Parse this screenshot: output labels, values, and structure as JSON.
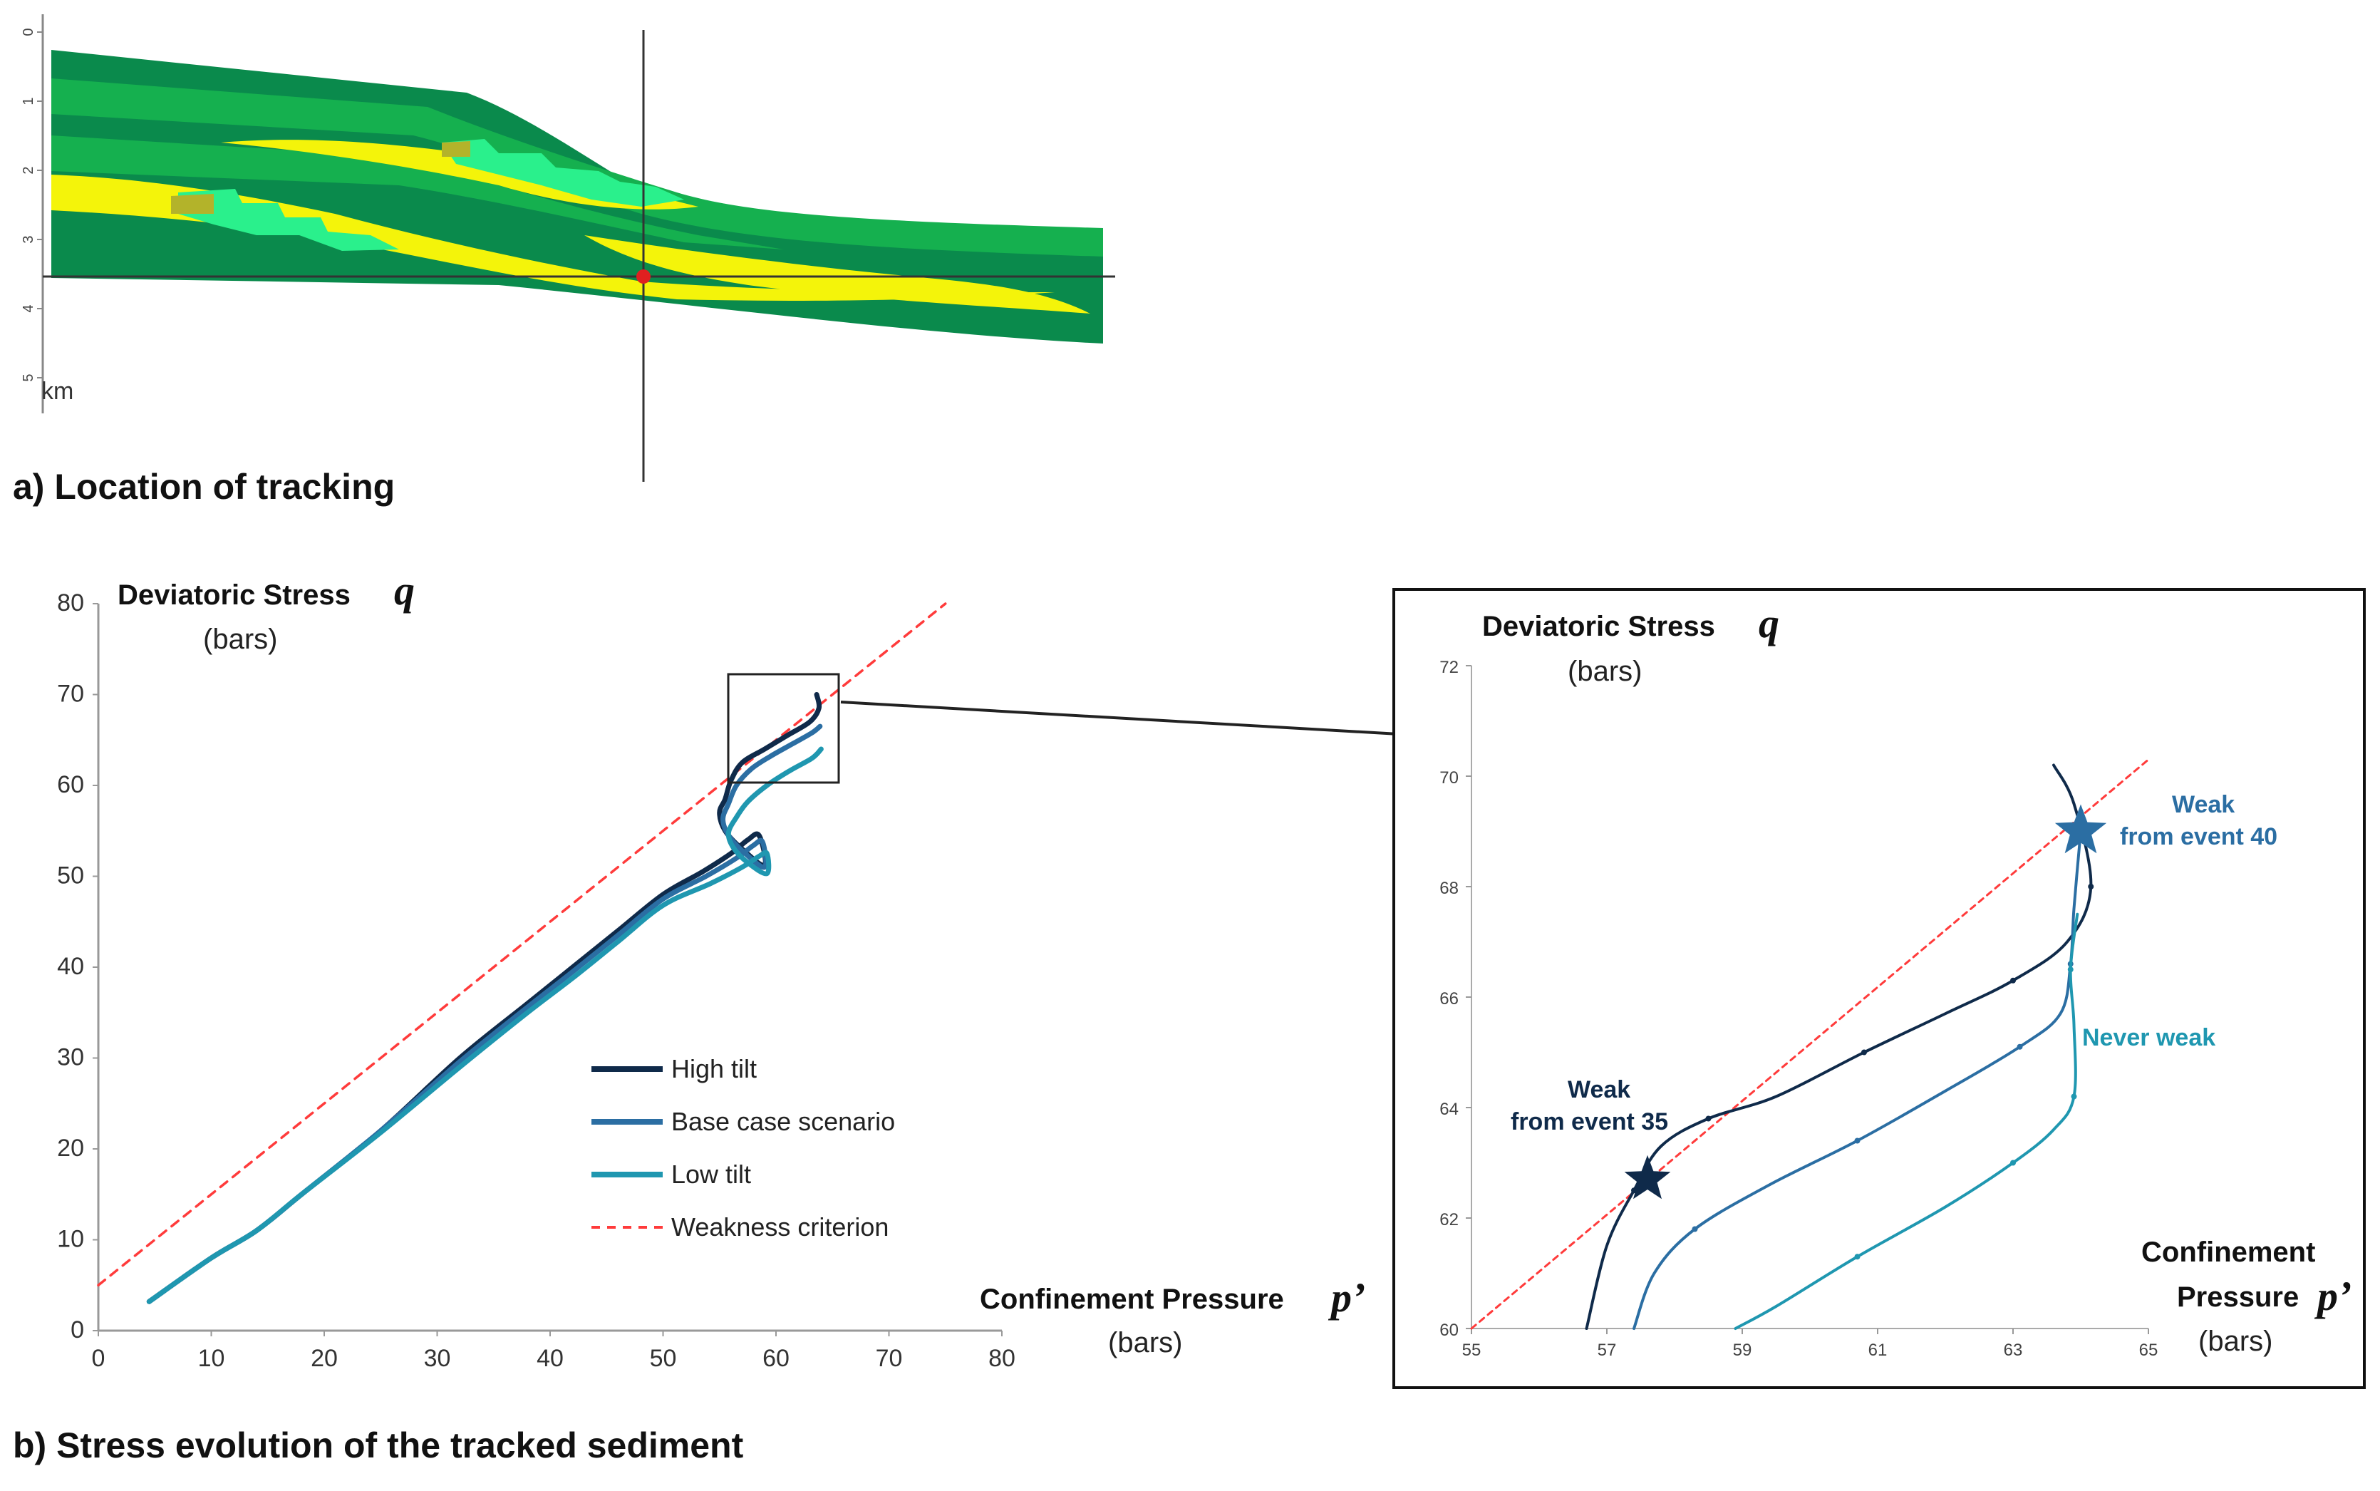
{
  "panel_a": {
    "caption": "a)   Location of tracking",
    "depth_ticks": [
      "0",
      "1",
      "2",
      "3",
      "4",
      "5"
    ],
    "depth_unit": "km"
  },
  "panel_b": {
    "caption": "b)   Stress evolution of the tracked sediment"
  },
  "colors": {
    "high_tilt": "#0f2a4a",
    "base_case": "#2b6ea3",
    "low_tilt": "#1f97b0",
    "criterion": "#ff3b3b",
    "dark_green": "#0a8a4c",
    "mid_green": "#15b04f",
    "yellow": "#f4f40a",
    "cyan_green": "#2af08c"
  },
  "chart_data": [
    {
      "type": "line",
      "title": "",
      "ylabel_text": "Deviatoric Stress",
      "ylabel_symbol": "q",
      "ylabel_unit": "(bars)",
      "xlabel_text": "Confinement Pressure",
      "xlabel_symbol": "p’",
      "xlabel_unit": "(bars)",
      "xlim": [
        0,
        80
      ],
      "ylim": [
        0,
        80
      ],
      "xticks": [
        "0",
        "10",
        "20",
        "30",
        "40",
        "50",
        "60",
        "70",
        "80"
      ],
      "yticks": [
        "0",
        "10",
        "20",
        "30",
        "40",
        "50",
        "60",
        "70",
        "80"
      ],
      "grid": false,
      "legend_position": "center",
      "series": [
        {
          "name": "High tilt",
          "color": "#0f2a4a",
          "dash": false,
          "x": [
            4.5,
            10,
            14,
            18,
            25,
            32,
            38,
            42,
            46,
            50,
            53.5,
            56,
            57.5,
            58.5,
            59,
            57,
            55.5,
            55,
            55.5,
            56,
            57,
            59,
            61,
            63,
            63.8,
            63.6
          ],
          "y": [
            3.2,
            8,
            11,
            15,
            22,
            30,
            36,
            40,
            44,
            48,
            50.5,
            52.5,
            54,
            54.5,
            51.2,
            53,
            55,
            57,
            58.5,
            60.5,
            62.5,
            64,
            65.5,
            67,
            68.5,
            70
          ]
        },
        {
          "name": "Base case scenario",
          "color": "#2b6ea3",
          "dash": false,
          "x": [
            4.5,
            10,
            14,
            18,
            25,
            32,
            38,
            42,
            46,
            50,
            53.8,
            56.5,
            58,
            58.8,
            59,
            57.2,
            55.8,
            55.3,
            55.8,
            56.5,
            57.8,
            59.5,
            61.5,
            63.2,
            63.9
          ],
          "y": [
            3.2,
            8,
            11,
            15,
            22,
            29.6,
            35.6,
            39.5,
            43.5,
            47.5,
            50,
            52,
            53.4,
            53.8,
            51.0,
            52.6,
            54.5,
            56.3,
            58,
            60,
            61.8,
            63.2,
            64.6,
            65.8,
            66.5
          ]
        },
        {
          "name": "Low tilt",
          "color": "#1f97b0",
          "dash": false,
          "x": [
            4.5,
            10,
            14,
            18,
            25,
            32,
            38,
            42,
            46,
            50,
            54.2,
            57,
            58.5,
            59.2,
            59.2,
            57.5,
            56.2,
            55.8,
            56.5,
            57.5,
            59.2,
            61.2,
            63.2,
            64.0
          ],
          "y": [
            3.2,
            8,
            11,
            15,
            21.8,
            29,
            35,
            38.8,
            42.8,
            46.8,
            49.2,
            51,
            52.2,
            52.5,
            50.3,
            51.5,
            53.2,
            54.8,
            56.5,
            58.2,
            60,
            61.6,
            63,
            64
          ]
        },
        {
          "name": "Weakness criterion",
          "color": "#ff3b3b",
          "dash": true,
          "x": [
            0,
            75
          ],
          "y": [
            5,
            80
          ]
        }
      ]
    },
    {
      "type": "line",
      "title": "",
      "ylabel_text": "Deviatoric Stress",
      "ylabel_symbol": "q",
      "ylabel_unit": "(bars)",
      "xlabel_text_1": "Confinement",
      "xlabel_text_2": "Pressure",
      "xlabel_symbol": "p’",
      "xlabel_unit": "(bars)",
      "xlim": [
        55,
        65
      ],
      "ylim": [
        60,
        72
      ],
      "xticks": [
        "55",
        "57",
        "59",
        "61",
        "63",
        "65"
      ],
      "yticks": [
        "60",
        "62",
        "64",
        "66",
        "68",
        "70",
        "72"
      ],
      "grid": false,
      "series": [
        {
          "name": "High tilt",
          "color": "#0f2a4a",
          "dash": false,
          "x": [
            56.7,
            57.0,
            57.4,
            57.8,
            58.5,
            59.5,
            60.8,
            62.0,
            63.0,
            63.8,
            64.15,
            63.9,
            63.6
          ],
          "y": [
            60,
            61.5,
            62.5,
            63.3,
            63.8,
            64.2,
            65.0,
            65.7,
            66.3,
            67.0,
            68.0,
            69.5,
            70.2
          ]
        },
        {
          "name": "Base case scenario",
          "color": "#2b6ea3",
          "dash": false,
          "x": [
            57.4,
            57.7,
            58.3,
            59.4,
            60.7,
            62.0,
            63.1,
            63.7,
            63.85,
            63.9,
            64.0
          ],
          "y": [
            60,
            61.0,
            61.8,
            62.6,
            63.4,
            64.3,
            65.1,
            65.7,
            66.6,
            67.6,
            69.0
          ]
        },
        {
          "name": "Low tilt",
          "color": "#1f97b0",
          "dash": false,
          "x": [
            58.9,
            59.5,
            60.7,
            62.0,
            63.0,
            63.6,
            63.9,
            63.9,
            63.85,
            63.95
          ],
          "y": [
            60,
            60.4,
            61.3,
            62.2,
            63.0,
            63.6,
            64.2,
            65.5,
            66.5,
            67.5
          ]
        },
        {
          "name": "Weakness criterion",
          "color": "#ff3b3b",
          "dash": true,
          "x": [
            55,
            65
          ],
          "y": [
            60,
            70.3
          ]
        }
      ],
      "annotations": [
        {
          "text_1": "Weak",
          "text_2": "from event 35",
          "color": "#0f2a4a",
          "x": 57.6,
          "y": 62.7
        },
        {
          "text_1": "Weak",
          "text_2": "from event 40",
          "color": "#2b6ea3",
          "x": 64.0,
          "y": 69.0
        },
        {
          "text": "Never weak",
          "color": "#1f97b0"
        }
      ]
    }
  ]
}
